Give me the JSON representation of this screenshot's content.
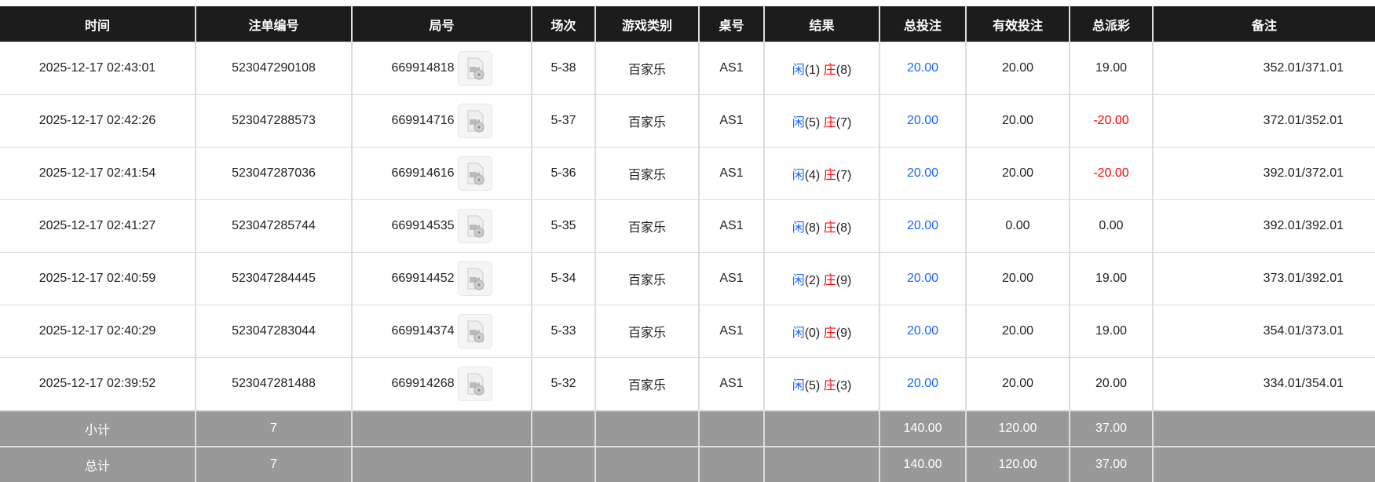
{
  "headers": [
    "时间",
    "注单编号",
    "局号",
    "场次",
    "游戏类别",
    "桌号",
    "结果",
    "总投注",
    "有效投注",
    "总派彩",
    "备注"
  ],
  "colors": {
    "header_bg": "#1c1c1c",
    "player": "#1a66ff",
    "banker": "#ff0000",
    "footer_bg": "#999999",
    "negative": "#ff0000"
  },
  "rows": [
    {
      "time": "2025-12-17 02:43:01",
      "bet_id": "523047290108",
      "round": "669914818",
      "shoe": "5-38",
      "game": "百家乐",
      "table": "AS1",
      "p_label": "闲",
      "p": "(1)",
      "b_label": "庄",
      "b": "(8)",
      "total": "20.00",
      "valid": "20.00",
      "payout": "19.00",
      "payout_neg": false,
      "remark": "352.01/371.01"
    },
    {
      "time": "2025-12-17 02:42:26",
      "bet_id": "523047288573",
      "round": "669914716",
      "shoe": "5-37",
      "game": "百家乐",
      "table": "AS1",
      "p_label": "闲",
      "p": "(5)",
      "b_label": "庄",
      "b": "(7)",
      "total": "20.00",
      "valid": "20.00",
      "payout": "-20.00",
      "payout_neg": true,
      "remark": "372.01/352.01"
    },
    {
      "time": "2025-12-17 02:41:54",
      "bet_id": "523047287036",
      "round": "669914616",
      "shoe": "5-36",
      "game": "百家乐",
      "table": "AS1",
      "p_label": "闲",
      "p": "(4)",
      "b_label": "庄",
      "b": "(7)",
      "total": "20.00",
      "valid": "20.00",
      "payout": "-20.00",
      "payout_neg": true,
      "remark": "392.01/372.01"
    },
    {
      "time": "2025-12-17 02:41:27",
      "bet_id": "523047285744",
      "round": "669914535",
      "shoe": "5-35",
      "game": "百家乐",
      "table": "AS1",
      "p_label": "闲",
      "p": "(8)",
      "b_label": "庄",
      "b": "(8)",
      "total": "20.00",
      "valid": "0.00",
      "payout": "0.00",
      "payout_neg": false,
      "remark": "392.01/392.01"
    },
    {
      "time": "2025-12-17 02:40:59",
      "bet_id": "523047284445",
      "round": "669914452",
      "shoe": "5-34",
      "game": "百家乐",
      "table": "AS1",
      "p_label": "闲",
      "p": "(2)",
      "b_label": "庄",
      "b": "(9)",
      "total": "20.00",
      "valid": "20.00",
      "payout": "19.00",
      "payout_neg": false,
      "remark": "373.01/392.01"
    },
    {
      "time": "2025-12-17 02:40:29",
      "bet_id": "523047283044",
      "round": "669914374",
      "shoe": "5-33",
      "game": "百家乐",
      "table": "AS1",
      "p_label": "闲",
      "p": "(0)",
      "b_label": "庄",
      "b": "(9)",
      "total": "20.00",
      "valid": "20.00",
      "payout": "19.00",
      "payout_neg": false,
      "remark": "354.01/373.01"
    },
    {
      "time": "2025-12-17 02:39:52",
      "bet_id": "523047281488",
      "round": "669914268",
      "shoe": "5-32",
      "game": "百家乐",
      "table": "AS1",
      "p_label": "闲",
      "p": "(5)",
      "b_label": "庄",
      "b": "(3)",
      "total": "20.00",
      "valid": "20.00",
      "payout": "20.00",
      "payout_neg": false,
      "remark": "334.01/354.01"
    }
  ],
  "subtotal": {
    "label": "小计",
    "count": "7",
    "total": "140.00",
    "valid": "120.00",
    "payout": "37.00"
  },
  "grandtotal": {
    "label": "总计",
    "count": "7",
    "total": "140.00",
    "valid": "120.00",
    "payout": "37.00"
  },
  "icons": {
    "replay": "video-replay-icon"
  }
}
